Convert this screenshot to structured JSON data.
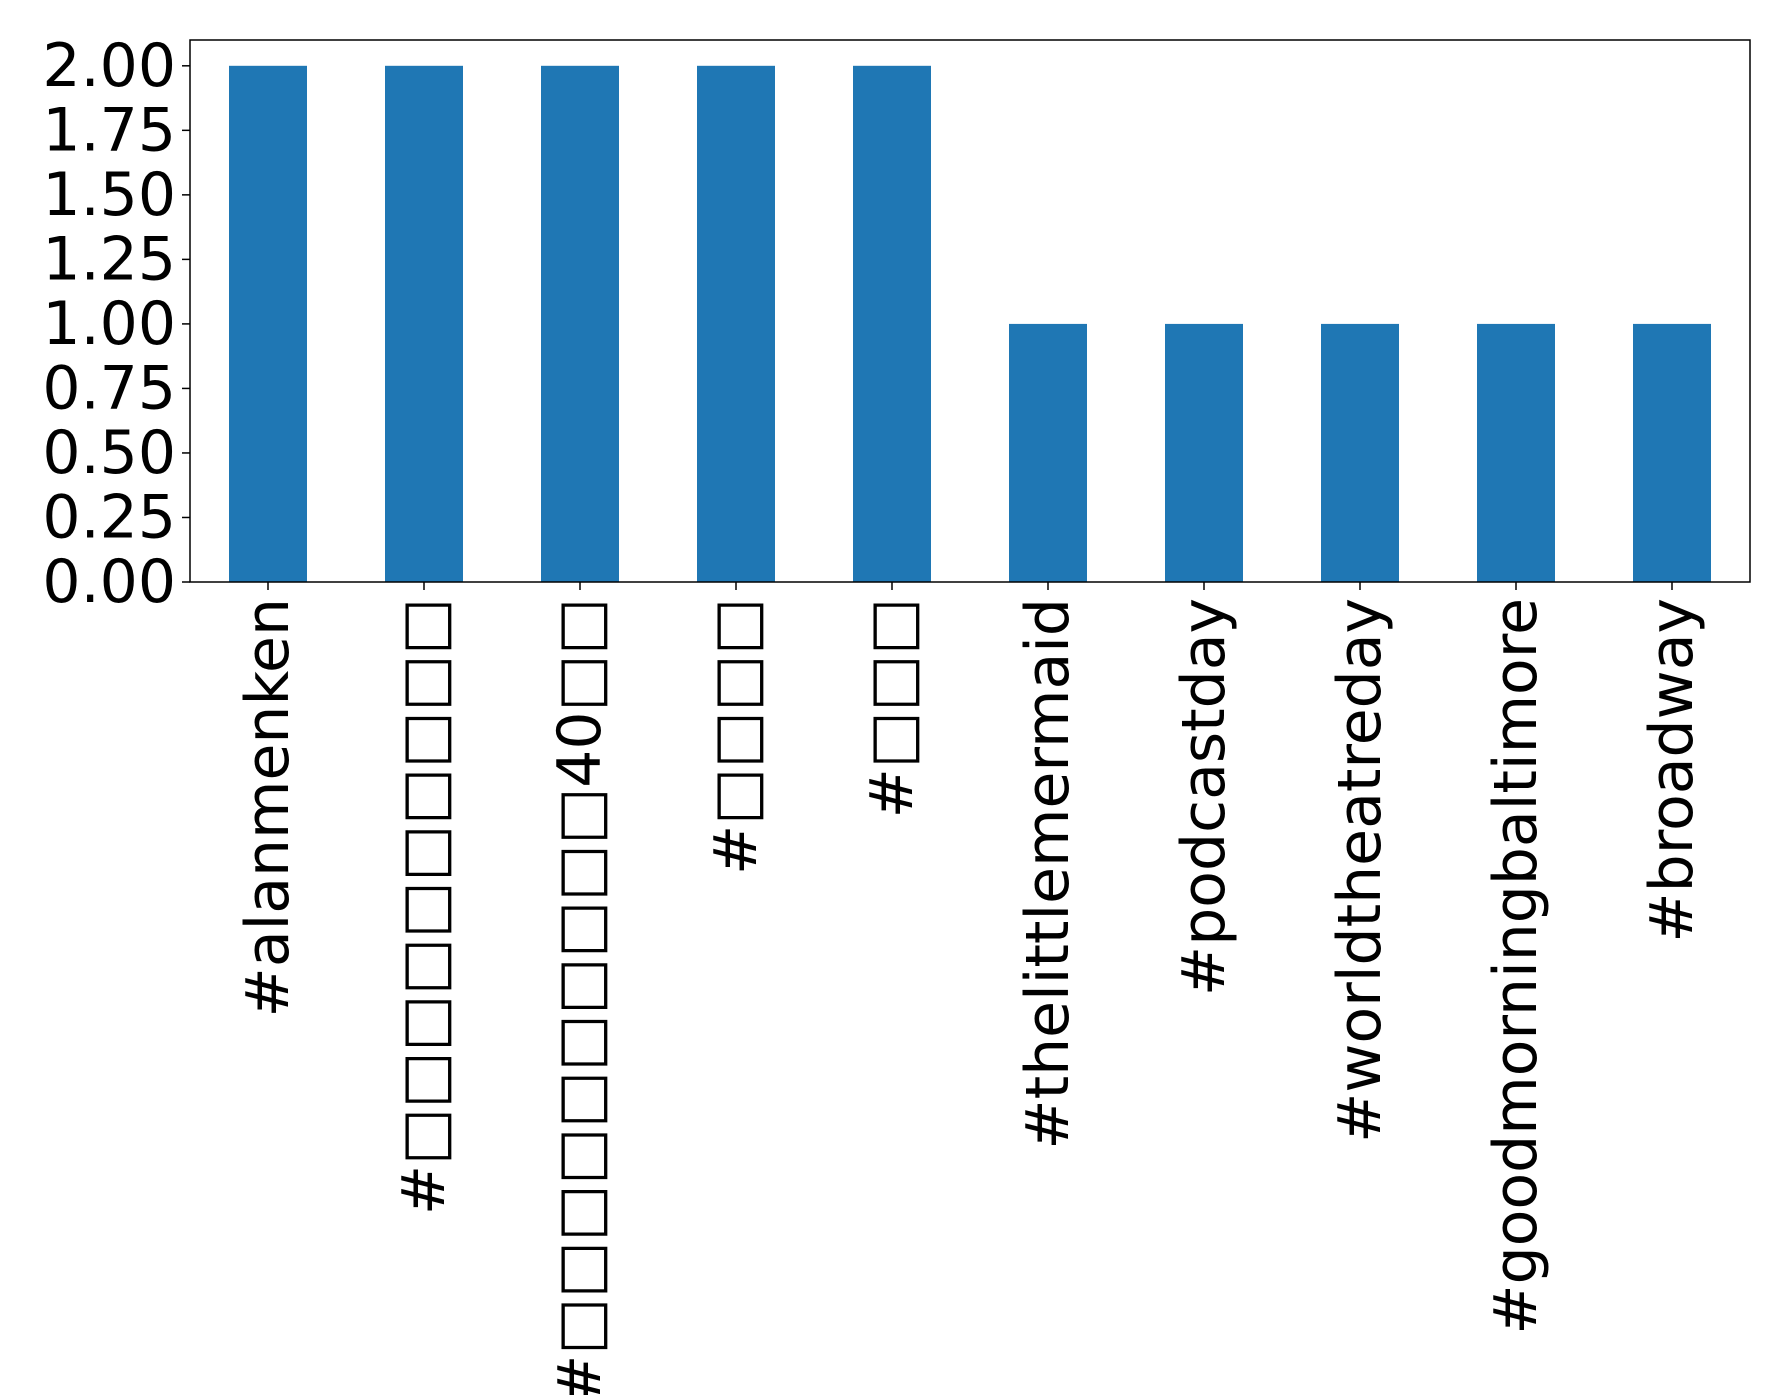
{
  "chart_data": {
    "type": "bar",
    "categories": [
      "#alanmenken",
      "#□□□□□□□□□□",
      "#□□□□□□□□□□40□□",
      "#□□□□",
      "#□□□",
      "#thelittlemermaid",
      "#podcastday",
      "#worldtheatreday",
      "#goodmorningbaltimore",
      "#broadway"
    ],
    "values": [
      2,
      2,
      2,
      2,
      2,
      1,
      1,
      1,
      1,
      1
    ],
    "ylim": [
      0,
      2.1
    ],
    "yticks": [
      "0.00",
      "0.25",
      "0.50",
      "0.75",
      "1.00",
      "1.25",
      "1.50",
      "1.75",
      "2.00"
    ],
    "ytick_values": [
      0,
      0.25,
      0.5,
      0.75,
      1.0,
      1.25,
      1.5,
      1.75,
      2.0
    ],
    "bar_color": "#1f77b4",
    "grid": false,
    "legend": false
  }
}
